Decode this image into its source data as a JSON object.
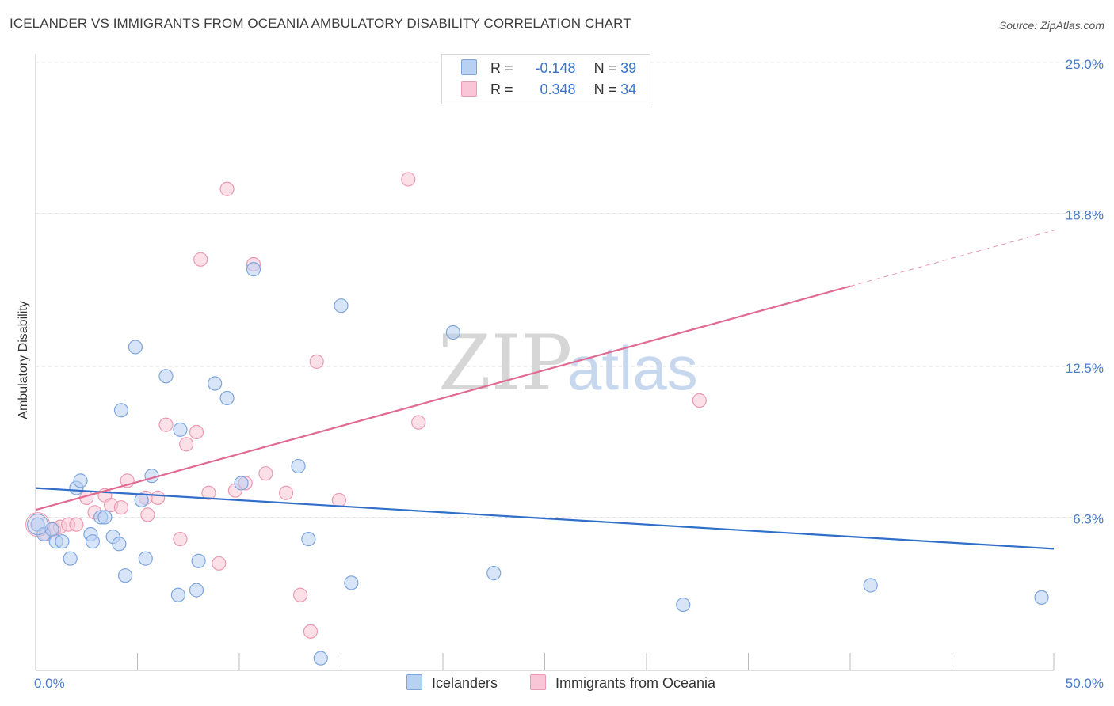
{
  "title": "ICELANDER VS IMMIGRANTS FROM OCEANIA AMBULATORY DISABILITY CORRELATION CHART",
  "source": "Source: ZipAtlas.com",
  "colors": {
    "blue_fill": "#b8d0f2",
    "blue_stroke": "#7ea6de",
    "blue_line": "#2f6ec9",
    "pink_fill": "#f8c6d6",
    "pink_stroke": "#ec9ab4",
    "pink_line": "#e06a93",
    "tick_text": "#4a7cc9",
    "grid": "#e0e0e0"
  },
  "legend": {
    "row1": {
      "r_label": "R =",
      "r_value": "-0.148",
      "n_label": "N =",
      "n_value": "39"
    },
    "row2": {
      "r_label": "R =",
      "r_value": "0.348",
      "n_label": "N =",
      "n_value": "34"
    }
  },
  "bottom_legend": {
    "series1": "Icelanders",
    "series2": "Immigrants from Oceania"
  },
  "watermark": {
    "part1": "ZIP",
    "part2": "atlas"
  },
  "chart_data": {
    "type": "scatter",
    "title": "ICELANDER VS IMMIGRANTS FROM OCEANIA AMBULATORY DISABILITY CORRELATION CHART",
    "xlabel": "",
    "ylabel": "Ambulatory Disability",
    "xlim": [
      0,
      50
    ],
    "ylim": [
      0,
      25
    ],
    "x_tick_labels": [
      "0.0%",
      "50.0%"
    ],
    "y_ticks": [
      6.3,
      12.5,
      18.8,
      25.0
    ],
    "y_tick_labels": [
      "6.3%",
      "12.5%",
      "18.8%",
      "25.0%"
    ],
    "grid": "horizontal dashed",
    "legend_position": "top-center",
    "series": [
      {
        "name": "Icelanders",
        "color": "#b8d0f2",
        "r": -0.148,
        "n": 39,
        "trend": {
          "x": [
            0,
            50
          ],
          "y": [
            7.5,
            5.0
          ]
        },
        "points": [
          [
            0.1,
            6.0
          ],
          [
            0.4,
            5.6
          ],
          [
            0.8,
            5.8
          ],
          [
            1.0,
            5.3
          ],
          [
            1.3,
            5.3
          ],
          [
            1.7,
            4.6
          ],
          [
            2.0,
            7.5
          ],
          [
            2.2,
            7.8
          ],
          [
            2.7,
            5.6
          ],
          [
            2.8,
            5.3
          ],
          [
            3.2,
            6.3
          ],
          [
            3.4,
            6.3
          ],
          [
            3.8,
            5.5
          ],
          [
            4.1,
            5.2
          ],
          [
            4.2,
            10.7
          ],
          [
            4.4,
            3.9
          ],
          [
            4.9,
            13.3
          ],
          [
            5.2,
            7.0
          ],
          [
            5.4,
            4.6
          ],
          [
            5.7,
            8.0
          ],
          [
            6.4,
            12.1
          ],
          [
            7.0,
            3.1
          ],
          [
            7.1,
            9.9
          ],
          [
            7.9,
            3.3
          ],
          [
            8.0,
            4.5
          ],
          [
            8.8,
            11.8
          ],
          [
            9.4,
            11.2
          ],
          [
            10.1,
            7.7
          ],
          [
            10.7,
            16.5
          ],
          [
            12.9,
            8.4
          ],
          [
            13.4,
            5.4
          ],
          [
            14.0,
            0.5
          ],
          [
            15.0,
            15.0
          ],
          [
            15.5,
            3.6
          ],
          [
            20.5,
            13.9
          ],
          [
            22.5,
            4.0
          ],
          [
            31.8,
            2.7
          ],
          [
            41.0,
            3.5
          ],
          [
            49.4,
            3.0
          ]
        ]
      },
      {
        "name": "Immigrants from Oceania",
        "color": "#f8c6d6",
        "r": 0.348,
        "n": 34,
        "trend": {
          "x": [
            0,
            40
          ],
          "y": [
            6.6,
            15.8
          ]
        },
        "trend_dashed": {
          "x": [
            40,
            50
          ],
          "y": [
            15.8,
            18.1
          ]
        },
        "points": [
          [
            0.5,
            5.6
          ],
          [
            0.9,
            5.8
          ],
          [
            1.2,
            5.9
          ],
          [
            1.6,
            6.0
          ],
          [
            2.0,
            6.0
          ],
          [
            2.5,
            7.1
          ],
          [
            2.9,
            6.5
          ],
          [
            3.4,
            7.2
          ],
          [
            3.7,
            6.8
          ],
          [
            4.2,
            6.7
          ],
          [
            4.5,
            7.8
          ],
          [
            5.4,
            7.1
          ],
          [
            5.5,
            6.4
          ],
          [
            6.0,
            7.1
          ],
          [
            6.4,
            10.1
          ],
          [
            7.4,
            9.3
          ],
          [
            7.9,
            9.8
          ],
          [
            7.1,
            5.4
          ],
          [
            8.1,
            16.9
          ],
          [
            8.5,
            7.3
          ],
          [
            9.0,
            4.4
          ],
          [
            9.4,
            19.8
          ],
          [
            9.8,
            7.4
          ],
          [
            10.3,
            7.7
          ],
          [
            10.7,
            16.7
          ],
          [
            11.3,
            8.1
          ],
          [
            12.3,
            7.3
          ],
          [
            13.0,
            3.1
          ],
          [
            13.5,
            1.6
          ],
          [
            13.8,
            12.7
          ],
          [
            14.9,
            7.0
          ],
          [
            18.3,
            20.2
          ],
          [
            18.8,
            10.2
          ],
          [
            32.6,
            11.1
          ]
        ]
      }
    ]
  }
}
